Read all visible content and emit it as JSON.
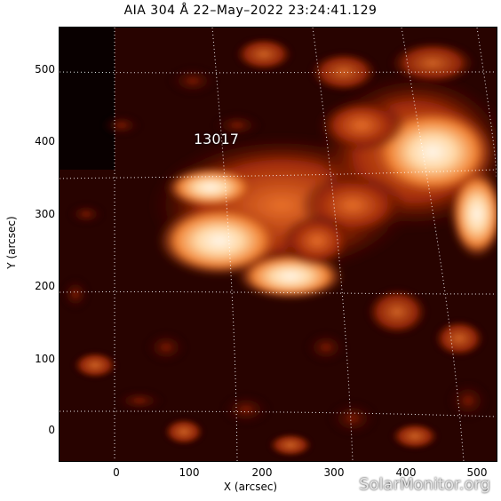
{
  "title": "AIA 304 Å 22–May–2022 23:24:41.129",
  "x_axis": {
    "label": "X (arcsec)",
    "ticks": [
      "0",
      "100",
      "200",
      "300",
      "400",
      "500"
    ]
  },
  "y_axis": {
    "label": "Y (arcsec)",
    "ticks": [
      "500",
      "400",
      "300",
      "200",
      "100",
      "0"
    ]
  },
  "region_label": "13017",
  "watermark": "SolarMonitor.org",
  "colors": {
    "background": "#000000",
    "grid": "#ffffff",
    "dark_red": "#5a0800",
    "orange": "#e0601a",
    "bright": "#ffe8d0"
  }
}
